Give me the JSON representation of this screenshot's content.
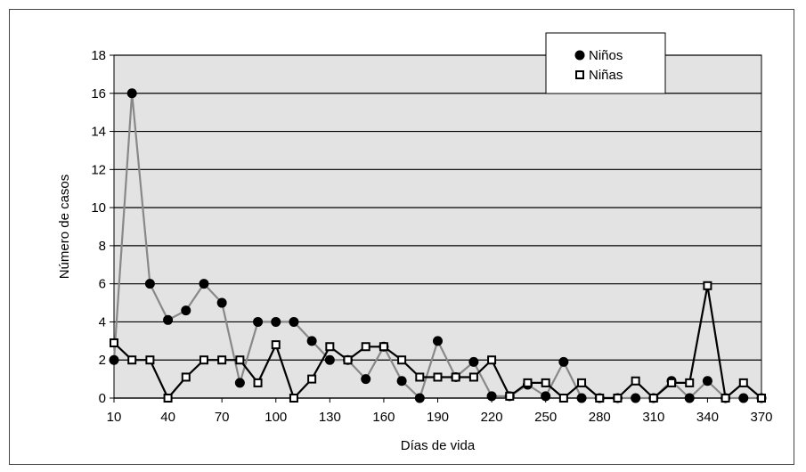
{
  "chart_data": {
    "type": "line",
    "xlabel": "Días de vida",
    "ylabel": "Número de casos",
    "xlim": [
      10,
      370
    ],
    "ylim": [
      0,
      18
    ],
    "x_ticks": [
      10,
      40,
      70,
      100,
      130,
      160,
      190,
      220,
      250,
      280,
      310,
      340,
      370
    ],
    "y_ticks": [
      0,
      2,
      4,
      6,
      8,
      10,
      12,
      14,
      16,
      18
    ],
    "grid": "horizontal",
    "legend_position": "top-right",
    "x": [
      10,
      20,
      30,
      40,
      50,
      60,
      70,
      80,
      90,
      100,
      110,
      120,
      130,
      140,
      150,
      160,
      170,
      180,
      190,
      200,
      210,
      220,
      230,
      240,
      250,
      260,
      270,
      280,
      290,
      300,
      310,
      320,
      330,
      340,
      350,
      360,
      370
    ],
    "series": [
      {
        "name": "Niños",
        "marker": "filled-circle",
        "line_color": "#888888",
        "values": [
          2,
          16,
          6,
          4.1,
          4.6,
          6,
          5,
          0.8,
          4,
          4,
          4,
          3,
          2,
          2,
          1,
          2.7,
          0.9,
          0,
          3,
          1.1,
          1.9,
          0.1,
          0.1,
          0.7,
          0.1,
          1.9,
          0,
          0,
          0,
          0,
          0,
          0.9,
          0,
          0.9,
          0,
          0,
          0
        ]
      },
      {
        "name": "Niñas",
        "marker": "open-square",
        "line_color": "#000000",
        "values": [
          2.9,
          2,
          2,
          0,
          1.1,
          2,
          2,
          2,
          0.8,
          2.8,
          0,
          1,
          2.7,
          2,
          2.7,
          2.7,
          2,
          1.1,
          1.1,
          1.1,
          1.1,
          2,
          0.1,
          0.8,
          0.8,
          0,
          0.8,
          0,
          0,
          0.9,
          0,
          0.8,
          0.8,
          5.9,
          0,
          0.8,
          0
        ]
      }
    ]
  }
}
